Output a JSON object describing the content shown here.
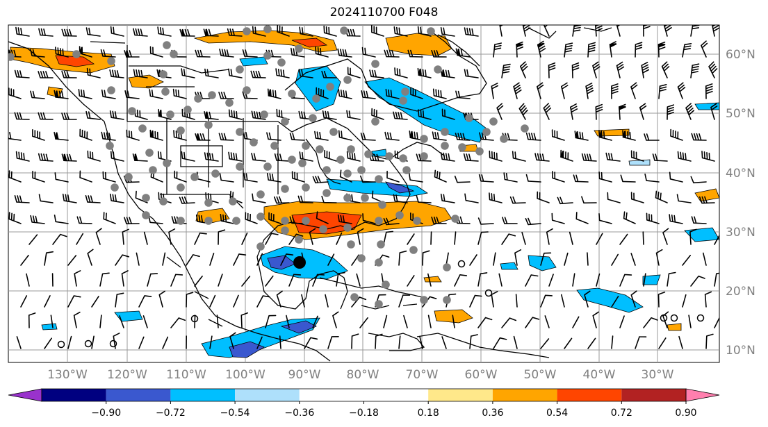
{
  "title": "2024110700 F048",
  "lon_labels": [
    "130°W",
    "120°W",
    "110°W",
    "100°W",
    "90°W",
    "80°W",
    "70°W",
    "60°W",
    "50°W",
    "40°W",
    "30°W"
  ],
  "lat_labels": [
    "60°N",
    "50°N",
    "40°N",
    "30°N",
    "20°N",
    "10°N"
  ],
  "colorbar": {
    "colors": [
      "#9932cc",
      "#000080",
      "#3a58cf",
      "#00bfff",
      "#aee0fb",
      "#ffffff",
      "#ffffff",
      "#ffe88a",
      "#ffa500",
      "#ff4500",
      "#b22222",
      "#ff7fae"
    ],
    "labels": [
      "−0.90",
      "−0.72",
      "−0.54",
      "−0.36",
      "−0.18",
      "0.18",
      "0.36",
      "0.54",
      "0.72",
      "0.90"
    ]
  }
}
